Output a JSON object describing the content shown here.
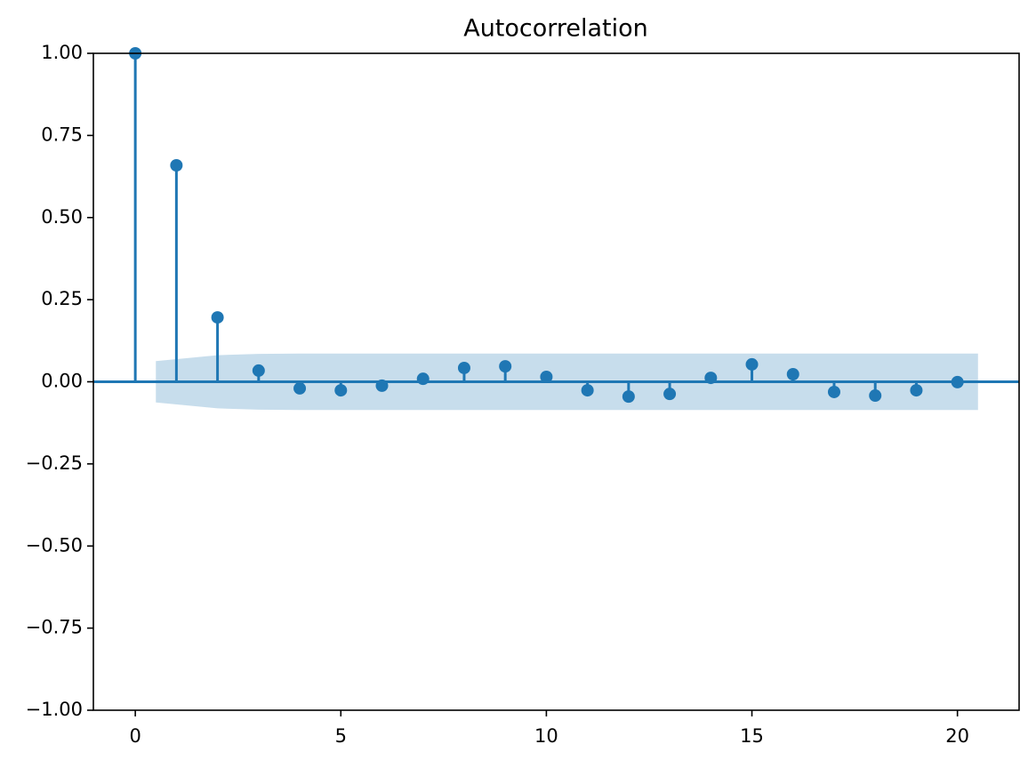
{
  "chart_data": {
    "type": "stem",
    "title": "Autocorrelation",
    "color": "#1f77b4",
    "x": [
      0,
      1,
      2,
      3,
      4,
      5,
      6,
      7,
      8,
      9,
      10,
      11,
      12,
      13,
      14,
      15,
      16,
      17,
      18,
      19,
      20
    ],
    "values": [
      1.0,
      0.659,
      0.196,
      0.034,
      -0.02,
      -0.026,
      -0.012,
      0.009,
      0.042,
      0.047,
      0.015,
      -0.026,
      -0.045,
      -0.037,
      0.012,
      0.053,
      0.023,
      -0.031,
      -0.042,
      -0.026,
      -0.001
    ],
    "confint": [
      0.063,
      0.081,
      0.085,
      0.086,
      0.086,
      0.086,
      0.086,
      0.086,
      0.086,
      0.086,
      0.086,
      0.086,
      0.086,
      0.086,
      0.086,
      0.086,
      0.086,
      0.086,
      0.086,
      0.086
    ],
    "xlim": [
      -1.02,
      21.5
    ],
    "xticks": [
      0,
      5,
      10,
      15,
      20
    ],
    "ylim": [
      -1,
      1
    ],
    "yticks": [
      {
        "value": -1,
        "label": "−1.00"
      },
      {
        "value": -0.75,
        "label": "−0.75"
      },
      {
        "value": -0.5,
        "label": "−0.50"
      },
      {
        "value": -0.25,
        "label": "−0.25"
      },
      {
        "value": 0,
        "label": "0.00"
      },
      {
        "value": 0.25,
        "label": "0.25"
      },
      {
        "value": 0.5,
        "label": "0.50"
      },
      {
        "value": 0.75,
        "label": "0.75"
      },
      {
        "value": 1,
        "label": "1.00"
      }
    ],
    "grid": false
  }
}
